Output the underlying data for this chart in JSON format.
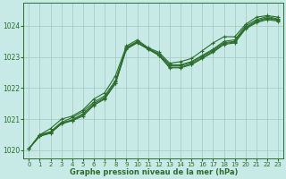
{
  "title": "Graphe pression niveau de la mer (hPa)",
  "background_color": "#c8eae6",
  "grid_color": "#a0c8c0",
  "line_color": "#2d6e2d",
  "marker_color": "#2d6e2d",
  "xlim": [
    -0.5,
    23.5
  ],
  "ylim": [
    1019.75,
    1024.75
  ],
  "yticks": [
    1020,
    1021,
    1022,
    1023,
    1024
  ],
  "xticks": [
    0,
    1,
    2,
    3,
    4,
    5,
    6,
    7,
    8,
    9,
    10,
    11,
    12,
    13,
    14,
    15,
    16,
    17,
    18,
    19,
    20,
    21,
    22,
    23
  ],
  "series": [
    [
      1020.05,
      1020.5,
      1020.6,
      1020.9,
      1021.05,
      1021.25,
      1021.55,
      1021.75,
      1022.25,
      1023.3,
      1023.5,
      1023.28,
      1023.1,
      1022.75,
      1022.75,
      1022.85,
      1023.05,
      1023.25,
      1023.5,
      1023.55,
      1024.0,
      1024.2,
      1024.3,
      1024.22
    ],
    [
      1020.05,
      1020.45,
      1020.55,
      1020.85,
      1020.95,
      1021.1,
      1021.45,
      1021.65,
      1022.15,
      1023.25,
      1023.45,
      1023.25,
      1023.05,
      1022.65,
      1022.65,
      1022.75,
      1022.95,
      1023.15,
      1023.4,
      1023.45,
      1023.9,
      1024.1,
      1024.2,
      1024.15
    ],
    [
      1020.05,
      1020.48,
      1020.58,
      1020.88,
      1020.98,
      1021.18,
      1021.5,
      1021.7,
      1022.2,
      1023.3,
      1023.48,
      1023.26,
      1023.08,
      1022.72,
      1022.72,
      1022.82,
      1023.02,
      1023.22,
      1023.46,
      1023.5,
      1023.95,
      1024.16,
      1024.26,
      1024.2
    ],
    [
      1020.05,
      1020.46,
      1020.56,
      1020.86,
      1020.96,
      1021.14,
      1021.46,
      1021.66,
      1022.16,
      1023.27,
      1023.47,
      1023.26,
      1023.06,
      1022.67,
      1022.67,
      1022.78,
      1022.98,
      1023.18,
      1023.43,
      1023.48,
      1023.93,
      1024.13,
      1024.24,
      1024.18
    ],
    [
      1020.0,
      1020.47,
      1020.57,
      1020.88,
      1020.97,
      1021.2,
      1021.5,
      1021.7,
      1022.2,
      1023.28,
      1023.48,
      1023.26,
      1023.07,
      1022.68,
      1022.68,
      1022.78,
      1023.0,
      1023.2,
      1023.44,
      1023.49,
      1023.94,
      1024.14,
      1024.24,
      1024.19
    ],
    [
      1020.05,
      1020.5,
      1020.7,
      1021.0,
      1021.1,
      1021.3,
      1021.65,
      1021.85,
      1022.4,
      1023.35,
      1023.55,
      1023.3,
      1023.15,
      1022.8,
      1022.85,
      1022.95,
      1023.2,
      1023.45,
      1023.65,
      1023.65,
      1024.05,
      1024.28,
      1024.33,
      1024.28
    ]
  ],
  "series_peaks": {
    "peak_x": 8,
    "peak_y_values": [
      1022.4,
      1023.28,
      1023.35,
      1023.45,
      1023.48,
      1023.5
    ]
  }
}
